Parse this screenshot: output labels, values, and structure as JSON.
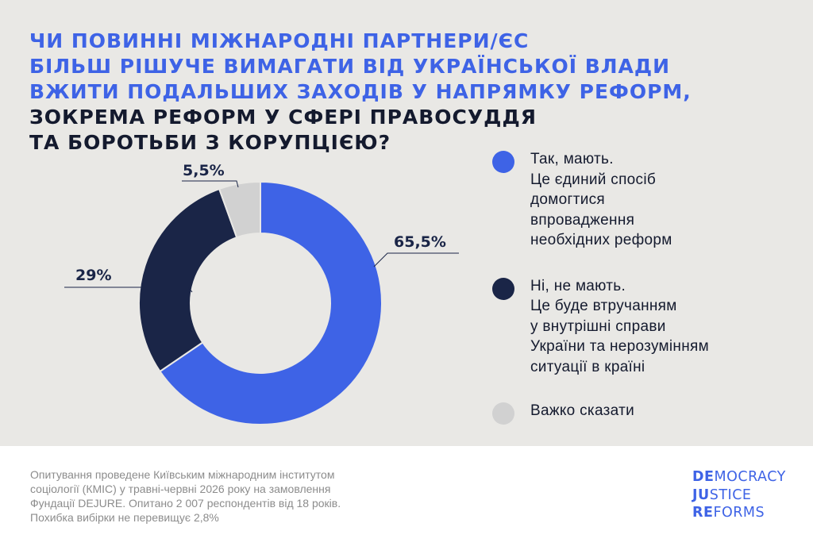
{
  "title": {
    "lines_accent": [
      "ЧИ ПОВИННІ МІЖНАРОДНІ ПАРТНЕРИ/ЄС",
      "БІЛЬШ РІШУЧЕ ВИМАГАТИ ВІД УКРАЇНСЬКОЇ ВЛАДИ",
      "ВЖИТИ ПОДАЛЬШИХ ЗАХОДІВ У НАПРЯМКУ РЕФОРМ,"
    ],
    "lines_dark": [
      "ЗОКРЕМА РЕФОРМ У СФЕРІ ПРАВОСУДДЯ",
      "ТА БОРОТЬБИ З КОРУПЦІЄЮ?"
    ]
  },
  "colors": {
    "accent": "#3e63e6",
    "dark": "#1a2547",
    "light": "#d1d1d1",
    "background": "#e9e8e5"
  },
  "chart_data": {
    "type": "pie",
    "variant": "donut",
    "title": "",
    "slices": [
      {
        "label": "Так, мають. Це єдиний спосіб домогтися впровадження необхідних реформ",
        "value": 65.5,
        "display": "65,5%",
        "color": "#3e63e6"
      },
      {
        "label": "Ні, не мають. Це буде втручанням у внутрішні справи України та нерозумінням ситуації в країні",
        "value": 29,
        "display": "29%",
        "color": "#1a2547"
      },
      {
        "label": "Важко сказати",
        "value": 5.5,
        "display": "5,5%",
        "color": "#d1d1d1"
      }
    ]
  },
  "legend": [
    {
      "text": "Так, мають.\nЦе єдиний спосіб\nдомогтися\nвпровадження\nнеобхідних реформ",
      "color": "#3e63e6"
    },
    {
      "text": "Ні, не мають.\nЦе буде втручанням\nу внутрішні справи\nУкраїни та нерозумінням\nситуації в країні",
      "color": "#1a2547"
    },
    {
      "text": "Важко сказати",
      "color": "#d1d1d1"
    }
  ],
  "footer": {
    "lines": [
      "Опитування проведене Київським міжнародним інститутом",
      "соціології (КМІС) у травні-червні 2026 року на замовлення",
      "Фундації DEJURE. Опитано 2 007 респондентів від 18 років.",
      "Похибка вибірки не перевищує 2,8%"
    ]
  },
  "logo": {
    "lines": [
      {
        "bold": "DE",
        "rest": "MOCRACY"
      },
      {
        "bold": "JU",
        "rest": "STICE"
      },
      {
        "bold": "RE",
        "rest": "FORMS"
      }
    ]
  }
}
